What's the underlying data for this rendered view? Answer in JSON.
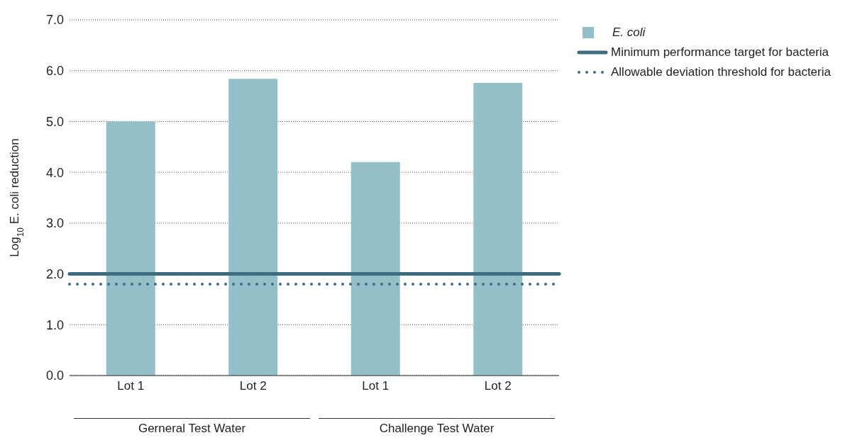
{
  "chart_data": {
    "type": "bar",
    "ylabel": "Log$_{10}$ E. coli reduction",
    "categories": [
      "Lot 1",
      "Lot 2",
      "Lot 1",
      "Lot 2"
    ],
    "series": [
      {
        "name": "E. coli",
        "color": "#93c0c8",
        "values": [
          5.0,
          5.84,
          4.2,
          5.76
        ]
      }
    ],
    "ylim": [
      0,
      7
    ],
    "yticks": [
      {
        "value": 0,
        "label": "0.0"
      },
      {
        "value": 1,
        "label": "1.0"
      },
      {
        "value": 2,
        "label": "2.0"
      },
      {
        "value": 3,
        "label": "3.0"
      },
      {
        "value": 4,
        "label": "4.0"
      },
      {
        "value": 5,
        "label": "5.0"
      },
      {
        "value": 6,
        "label": "6.0"
      },
      {
        "value": 7,
        "label": "7.0"
      }
    ],
    "grid": "y",
    "legend": "top right",
    "ref_lines": [
      {
        "axis": "y",
        "value": 2.0,
        "label": "Minimum performance target for bacteria",
        "color": "#3d6b80",
        "line_style": "solid"
      },
      {
        "axis": "y",
        "value": 1.8,
        "label": "Allowable deviation threshold for bacteria",
        "color": "#3d6b80",
        "line_style": "dotted"
      }
    ],
    "annotations": [
      "Gerneral Test Water",
      "Challenge Test Water"
    ]
  }
}
